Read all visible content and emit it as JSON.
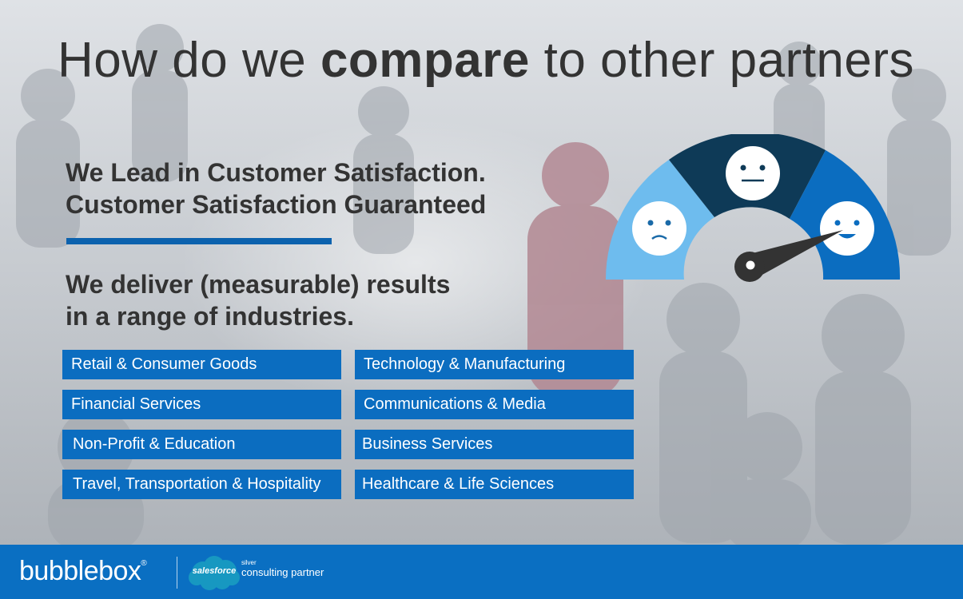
{
  "header": {
    "title_before": "How do we ",
    "title_bold": "compare",
    "title_after": " to other partners"
  },
  "lead": {
    "line1": "We Lead in Customer Satisfaction.",
    "line2": "Customer Satisfaction Guaranteed"
  },
  "deliver": {
    "line1": "We deliver (measurable) results",
    "line2": "in a range of industries."
  },
  "industries": [
    "Retail & Consumer Goods",
    "Technology & Manufacturing",
    "Financial Services",
    "Communications & Media",
    "Non-Profit & Education",
    "Business Services",
    "Travel, Transportation & Hospitality",
    "Healthcare & Life Sciences"
  ],
  "gauge": {
    "segments": [
      "sad-face-icon",
      "neutral-face-icon",
      "happy-face-icon"
    ],
    "level": "happy",
    "colors": {
      "sad": "#6ebcee",
      "neutral": "#0e3a57",
      "happy": "#0b6dc0",
      "needle": "#333333"
    }
  },
  "footer": {
    "brand": "bubblebox",
    "registered": "®",
    "partner_brand": "salesforce",
    "partner_tier": "silver",
    "partner_label": "consulting partner",
    "colors": {
      "bar": "#0a6fc2",
      "cloud": "#1798c1"
    }
  }
}
